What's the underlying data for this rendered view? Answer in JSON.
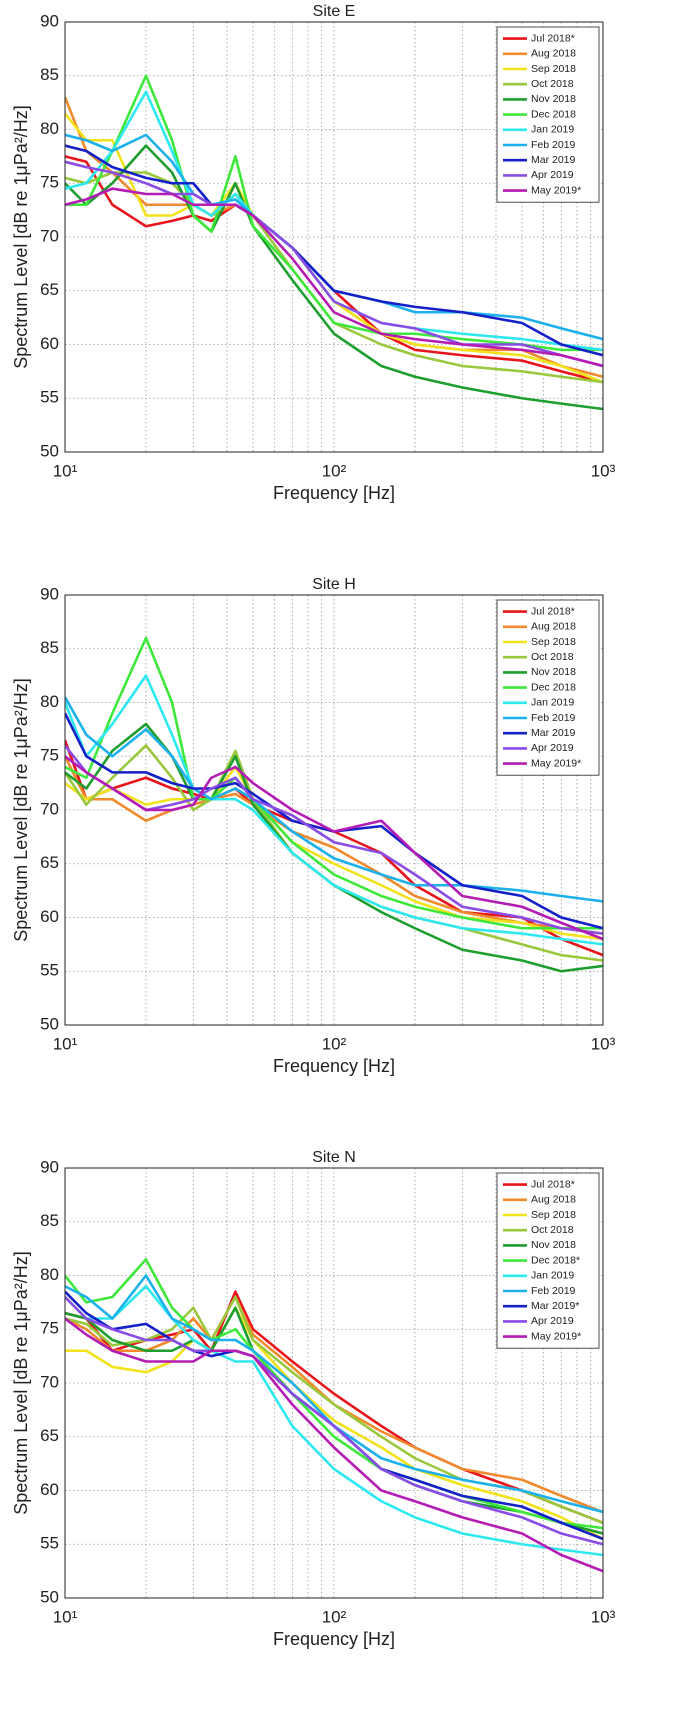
{
  "chart_data": [
    {
      "type": "line",
      "title": "Site E",
      "xlabel": "Frequency [Hz]",
      "ylabel": "Spectrum Level [dB re 1μPa²/Hz]",
      "xscale": "log",
      "grid": true,
      "legend": "upper right",
      "xlim": [
        10,
        1000
      ],
      "ylim": [
        50,
        90
      ],
      "xticks": [
        {
          "value": 10,
          "label": "10¹"
        },
        {
          "value": 100,
          "label": "10²"
        },
        {
          "value": 1000,
          "label": "10³"
        }
      ],
      "minor_xticks": [
        20,
        30,
        40,
        50,
        60,
        70,
        80,
        90,
        200,
        300,
        400,
        500,
        600,
        700,
        800,
        900
      ],
      "yticks": [
        50,
        55,
        60,
        65,
        70,
        75,
        80,
        85,
        90
      ],
      "x": [
        10,
        12,
        15,
        20,
        25,
        30,
        35,
        43,
        50,
        70,
        100,
        150,
        200,
        300,
        500,
        700,
        1000
      ],
      "series": [
        {
          "name": "Jul 2018*",
          "color": "#e8141c",
          "values": [
            77.5,
            77,
            73,
            71,
            71.5,
            72,
            71.5,
            73,
            72,
            69,
            65,
            61,
            59.5,
            59,
            58.5,
            57.5,
            56.5
          ]
        },
        {
          "name": "Aug 2018",
          "color": "#f08a2c",
          "values": [
            83,
            78,
            76,
            73,
            73,
            73,
            72,
            73,
            72,
            69,
            64,
            61,
            60,
            59.5,
            59.5,
            58,
            57
          ]
        },
        {
          "name": "Sep 2018",
          "color": "#f2e21a",
          "values": [
            81.5,
            79,
            79,
            72,
            72,
            73,
            72,
            75,
            72,
            69,
            64,
            61,
            60,
            59.5,
            59,
            58,
            56.5
          ]
        },
        {
          "name": "Oct 2018",
          "color": "#9ac83c",
          "values": [
            75.5,
            75,
            76,
            76,
            75,
            73,
            72,
            74,
            72,
            67,
            62,
            60,
            59,
            58,
            57.5,
            57,
            56.5
          ]
        },
        {
          "name": "Nov 2018",
          "color": "#1e9e2e",
          "values": [
            75,
            73,
            75,
            78.5,
            76,
            72,
            70.5,
            75,
            71,
            66,
            61,
            58,
            57,
            56,
            55,
            54.5,
            54
          ]
        },
        {
          "name": "Dec 2018",
          "color": "#3ee83a",
          "values": [
            73,
            73,
            78,
            85,
            79,
            72,
            70.5,
            77.5,
            71,
            67,
            62,
            61,
            61,
            60.5,
            60,
            59.5,
            59.5
          ]
        },
        {
          "name": "Jan 2019",
          "color": "#2ee8f0",
          "values": [
            74.5,
            75,
            78,
            83.5,
            78,
            73,
            72,
            74,
            72,
            69,
            64,
            62,
            61.5,
            61,
            60.5,
            60,
            59.5
          ]
        },
        {
          "name": "Feb 2019",
          "color": "#1cb0ec",
          "values": [
            79.5,
            79,
            78,
            79.5,
            77,
            74,
            73,
            73.5,
            72,
            69,
            65,
            64,
            63,
            63,
            62.5,
            61.5,
            60.5
          ]
        },
        {
          "name": "Mar 2019",
          "color": "#1420c8",
          "values": [
            78.5,
            78,
            76.5,
            75.5,
            75,
            75,
            73,
            73,
            72,
            69,
            65,
            64,
            63.5,
            63,
            62,
            60,
            59
          ]
        },
        {
          "name": "Apr 2019",
          "color": "#8a4ce6",
          "values": [
            77,
            76.5,
            76,
            75,
            74,
            74,
            73,
            73,
            72,
            69,
            64,
            62,
            61.5,
            60,
            60,
            59,
            58
          ]
        },
        {
          "name": "May 2019*",
          "color": "#b41cb4",
          "values": [
            73,
            73.5,
            74.5,
            74,
            74,
            73,
            73,
            73,
            72,
            68,
            63,
            61,
            60.5,
            60,
            59.5,
            59,
            58
          ]
        }
      ]
    },
    {
      "type": "line",
      "title": "Site H",
      "xlabel": "Frequency [Hz]",
      "ylabel": "Spectrum Level [dB re 1μPa²/Hz]",
      "xscale": "log",
      "grid": true,
      "legend": "upper right",
      "xlim": [
        10,
        1000
      ],
      "ylim": [
        50,
        90
      ],
      "xticks": [
        {
          "value": 10,
          "label": "10¹"
        },
        {
          "value": 100,
          "label": "10²"
        },
        {
          "value": 1000,
          "label": "10³"
        }
      ],
      "minor_xticks": [
        20,
        30,
        40,
        50,
        60,
        70,
        80,
        90,
        200,
        300,
        400,
        500,
        600,
        700,
        800,
        900
      ],
      "yticks": [
        50,
        55,
        60,
        65,
        70,
        75,
        80,
        85,
        90
      ],
      "x": [
        10,
        12,
        15,
        20,
        25,
        30,
        35,
        43,
        50,
        70,
        100,
        150,
        200,
        300,
        500,
        700,
        1000
      ],
      "series": [
        {
          "name": "Jul 2018*",
          "color": "#e8141c",
          "values": [
            76.5,
            71,
            72,
            73,
            72,
            71.5,
            71,
            72,
            70.5,
            69,
            68,
            66,
            63,
            60.5,
            60,
            58,
            56.5
          ]
        },
        {
          "name": "Aug 2018",
          "color": "#f08a2c",
          "values": [
            75,
            71,
            71,
            69,
            70,
            70.5,
            71,
            71.5,
            70.5,
            68,
            66.5,
            64,
            62,
            60.5,
            59.5,
            59,
            58.5
          ]
        },
        {
          "name": "Sep 2018",
          "color": "#f2e21a",
          "values": [
            72.5,
            71,
            72,
            70.5,
            71,
            71,
            71,
            74,
            71,
            67,
            65,
            63,
            61.5,
            60,
            59.5,
            58.5,
            58
          ]
        },
        {
          "name": "Oct 2018",
          "color": "#9ac83c",
          "values": [
            73.5,
            70.5,
            73,
            76,
            73,
            70,
            71,
            75.5,
            71,
            66,
            63,
            61,
            60,
            59,
            57.5,
            56.5,
            56
          ]
        },
        {
          "name": "Nov 2018",
          "color": "#1e9e2e",
          "values": [
            73.5,
            72,
            75.5,
            78,
            75,
            71,
            71,
            75,
            70.5,
            66,
            63,
            60.5,
            59,
            57,
            56,
            55,
            55.5
          ]
        },
        {
          "name": "Dec 2018",
          "color": "#3ee83a",
          "values": [
            74,
            73,
            79,
            86,
            80,
            71,
            71,
            73,
            71,
            67,
            64,
            62,
            61,
            60,
            59,
            59,
            59
          ]
        },
        {
          "name": "Jan 2019",
          "color": "#2ee8f0",
          "values": [
            80,
            75,
            78,
            82.5,
            77,
            72,
            71,
            71,
            70,
            66,
            63,
            61,
            60,
            59,
            58.5,
            58,
            57.5
          ]
        },
        {
          "name": "Feb 2019",
          "color": "#1cb0ec",
          "values": [
            80.5,
            77,
            75,
            77.5,
            75,
            72,
            71,
            72,
            71,
            68,
            65.5,
            64,
            63,
            63,
            62.5,
            62,
            61.5
          ]
        },
        {
          "name": "Mar 2019",
          "color": "#1420c8",
          "values": [
            79,
            75,
            73.5,
            73.5,
            72.5,
            72,
            72,
            72.5,
            71.5,
            69,
            68,
            68.5,
            66,
            63,
            62,
            60,
            59
          ]
        },
        {
          "name": "Apr 2019",
          "color": "#8a4ce6",
          "values": [
            76,
            73.5,
            72,
            70,
            70.5,
            71,
            72,
            73,
            71,
            69.5,
            67,
            66,
            64,
            61,
            60,
            59,
            58.5
          ]
        },
        {
          "name": "May 2019*",
          "color": "#b41cb4",
          "values": [
            75,
            73.5,
            72,
            70,
            70,
            70.5,
            73,
            74,
            72.5,
            70,
            68,
            69,
            66,
            62,
            61,
            59.5,
            58
          ]
        }
      ]
    },
    {
      "type": "line",
      "title": "Site N",
      "xlabel": "Frequency [Hz]",
      "ylabel": "Spectrum Level [dB re 1μPa²/Hz]",
      "xscale": "log",
      "grid": true,
      "legend": "upper right",
      "xlim": [
        10,
        1000
      ],
      "ylim": [
        50,
        90
      ],
      "xticks": [
        {
          "value": 10,
          "label": "10¹"
        },
        {
          "value": 100,
          "label": "10²"
        },
        {
          "value": 1000,
          "label": "10³"
        }
      ],
      "minor_xticks": [
        20,
        30,
        40,
        50,
        60,
        70,
        80,
        90,
        200,
        300,
        400,
        500,
        600,
        700,
        800,
        900
      ],
      "yticks": [
        50,
        55,
        60,
        65,
        70,
        75,
        80,
        85,
        90
      ],
      "x": [
        10,
        12,
        15,
        20,
        25,
        30,
        35,
        43,
        50,
        70,
        100,
        150,
        200,
        300,
        500,
        700,
        1000
      ],
      "series": [
        {
          "name": "Jul 2018*",
          "color": "#e8141c",
          "values": [
            76.5,
            76,
            73,
            74,
            74.5,
            75,
            73,
            78.5,
            75,
            72,
            69,
            66,
            64,
            62,
            60,
            58.5,
            57
          ]
        },
        {
          "name": "Aug 2018",
          "color": "#f08a2c",
          "values": [
            76,
            75,
            73,
            73,
            74,
            76,
            74,
            78,
            74.5,
            71.5,
            68,
            65.5,
            64,
            62,
            61,
            59.5,
            58
          ]
        },
        {
          "name": "Sep 2018",
          "color": "#f2e21a",
          "values": [
            73,
            73,
            71.5,
            71,
            72,
            74,
            73,
            77,
            74,
            70,
            66.5,
            64,
            62,
            60.5,
            59,
            57.5,
            55.5
          ]
        },
        {
          "name": "Oct 2018",
          "color": "#9ac83c",
          "values": [
            76,
            75.5,
            73.5,
            74,
            75,
            77,
            74,
            78,
            74,
            71,
            68,
            65,
            63,
            61,
            60,
            58.5,
            57
          ]
        },
        {
          "name": "Nov 2018",
          "color": "#1e9e2e",
          "values": [
            76.5,
            76,
            74,
            73,
            73,
            74,
            73,
            77,
            73,
            69,
            66,
            62,
            60.5,
            59,
            58,
            57,
            56
          ]
        },
        {
          "name": "Dec 2018*",
          "color": "#3ee83a",
          "values": [
            80,
            77.5,
            78,
            81.5,
            77,
            75,
            74,
            75,
            73,
            69,
            65,
            62,
            61,
            59.5,
            58,
            57,
            56.5
          ]
        },
        {
          "name": "Jan 2019",
          "color": "#2ee8f0",
          "values": [
            78,
            76,
            76,
            79,
            76,
            74,
            73,
            72,
            72,
            66,
            62,
            59,
            57.5,
            56,
            55,
            54.5,
            54
          ]
        },
        {
          "name": "Feb 2019",
          "color": "#1cb0ec",
          "values": [
            79,
            78,
            76,
            80,
            76,
            75,
            74,
            74,
            73,
            70,
            66,
            63,
            62,
            61,
            60,
            59,
            58
          ]
        },
        {
          "name": "Mar 2019*",
          "color": "#1420c8",
          "values": [
            78.5,
            76.5,
            75,
            75.5,
            74,
            73,
            72.5,
            73,
            72.5,
            69,
            66,
            62,
            61,
            59.5,
            58.5,
            57,
            55.5
          ]
        },
        {
          "name": "Apr 2019",
          "color": "#8a4ce6",
          "values": [
            78,
            76,
            75,
            74,
            74,
            73,
            73,
            73,
            72.5,
            69,
            66,
            62,
            60.5,
            59,
            57.5,
            56,
            55
          ]
        },
        {
          "name": "May 2019*",
          "color": "#b41cb4",
          "values": [
            76,
            74.5,
            73,
            72,
            72,
            72,
            73,
            73,
            72.5,
            68,
            64,
            60,
            59,
            57.5,
            56,
            54,
            52.5
          ]
        }
      ]
    }
  ]
}
